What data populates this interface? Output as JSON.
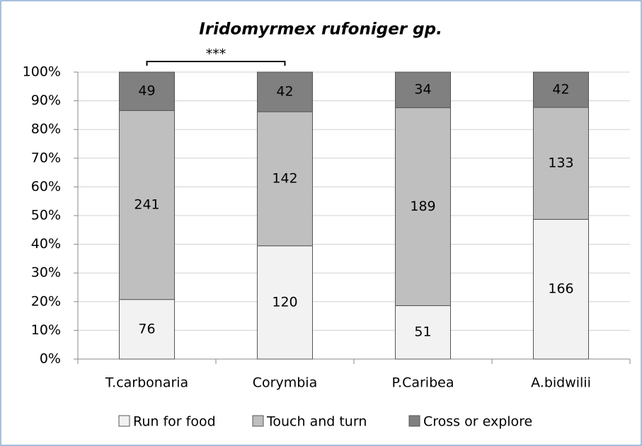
{
  "chart_data": {
    "type": "bar",
    "stacking": "percent",
    "title": "Iridomyrmex rufoniger gp.",
    "annotation": "***",
    "categories": [
      "T.carbonaria",
      "Corymbia",
      "P.Caribea",
      "A.bidwilii"
    ],
    "series": [
      {
        "name": "Run for food",
        "color": "#f2f2f2",
        "values": [
          76,
          120,
          51,
          166
        ]
      },
      {
        "name": "Touch and turn",
        "color": "#bfbfbf",
        "values": [
          241,
          142,
          189,
          133
        ]
      },
      {
        "name": "Cross or explore",
        "color": "#808080",
        "values": [
          49,
          42,
          34,
          42
        ]
      }
    ],
    "ylim": [
      0,
      100
    ],
    "yticks": [
      {
        "value": 0,
        "label": "0%"
      },
      {
        "value": 10,
        "label": "10%"
      },
      {
        "value": 20,
        "label": "20%"
      },
      {
        "value": 30,
        "label": "30%"
      },
      {
        "value": 40,
        "label": "40%"
      },
      {
        "value": 50,
        "label": "50%"
      },
      {
        "value": 60,
        "label": "60%"
      },
      {
        "value": 70,
        "label": "70%"
      },
      {
        "value": 80,
        "label": "80%"
      },
      {
        "value": 90,
        "label": "90%"
      },
      {
        "value": 100,
        "label": "100%"
      }
    ],
    "grid": true,
    "legend": "bottom"
  }
}
